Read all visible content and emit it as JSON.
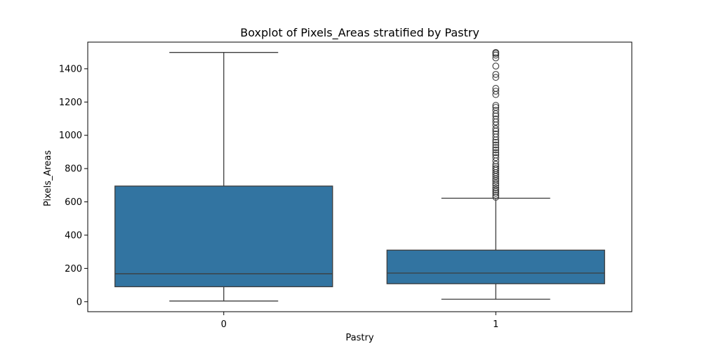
{
  "chart_data": {
    "type": "boxplot",
    "title": "Boxplot of Pixels_Areas stratified by Pastry",
    "xlabel": "Pastry",
    "ylabel": "Pixels_Areas",
    "ylim": [
      -60,
      1560
    ],
    "yticks": [
      0,
      200,
      400,
      600,
      800,
      1000,
      1200,
      1400
    ],
    "grid": false,
    "categories": [
      "0",
      "1"
    ],
    "box_color": "#3274a1",
    "line_color": "#3d3d3d",
    "boxes": [
      {
        "category": "0",
        "whisker_low": 4,
        "q1": 90,
        "median": 168,
        "q3": 695,
        "whisker_high": 1498,
        "outliers": []
      },
      {
        "category": "1",
        "whisker_low": 15,
        "q1": 108,
        "median": 172,
        "q3": 310,
        "whisker_high": 622,
        "outliers": [
          628,
          640,
          652,
          662,
          672,
          684,
          700,
          712,
          726,
          738,
          752,
          764,
          776,
          790,
          800,
          812,
          826,
          846,
          866,
          882,
          896,
          912,
          926,
          942,
          958,
          972,
          990,
          1008,
          1025,
          1040,
          1062,
          1080,
          1098,
          1116,
          1130,
          1150,
          1168,
          1180,
          1245,
          1265,
          1282,
          1348,
          1366,
          1416,
          1465,
          1482,
          1492,
          1498
        ]
      }
    ]
  }
}
